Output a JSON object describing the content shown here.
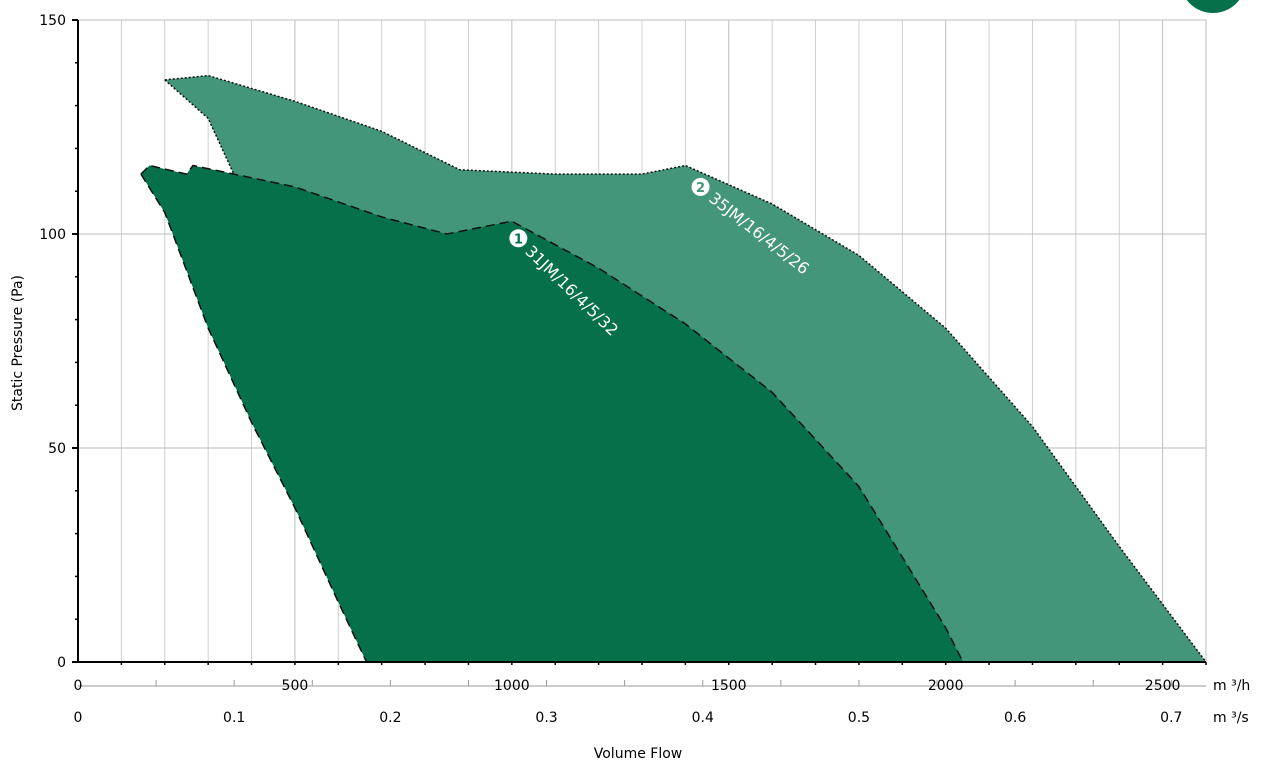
{
  "chart_data": {
    "type": "area",
    "title": "",
    "ylabel": "Static Pressure (Pa)",
    "xlabel": "Volume Flow",
    "x_unit_primary": "m ³/h",
    "x_unit_secondary": "m ³/s",
    "xlim": [
      0,
      2600
    ],
    "ylim": [
      0,
      150
    ],
    "x_ticks_primary": [
      0,
      500,
      1000,
      1500,
      2000,
      2500
    ],
    "x_tick_labels_primary": [
      "0",
      "500",
      "1000",
      "1500",
      "2000",
      "2500"
    ],
    "x_ticks_secondary": [
      0,
      0.1,
      0.2,
      0.3,
      0.4,
      0.5,
      0.6,
      0.7
    ],
    "x_tick_labels_secondary": [
      "0",
      "0.1",
      "0.2",
      "0.3",
      "0.4",
      "0.5",
      "0.6",
      "0.7"
    ],
    "y_ticks": [
      0,
      50,
      100,
      150
    ],
    "y_tick_labels": [
      "0",
      "50",
      "100",
      "150"
    ],
    "grid": true,
    "series": [
      {
        "name": "31JM/16/4/5/32",
        "marker": "1",
        "color": "#05704A",
        "upper": [
          [
            145,
            114
          ],
          [
            165,
            116
          ],
          [
            250,
            114
          ],
          [
            265,
            116
          ],
          [
            500,
            111
          ],
          [
            700,
            104
          ],
          [
            850,
            100
          ],
          [
            1000,
            103
          ],
          [
            1200,
            92
          ],
          [
            1400,
            79
          ],
          [
            1600,
            63
          ],
          [
            1800,
            41
          ],
          [
            2000,
            8
          ],
          [
            2040,
            0
          ]
        ],
        "lower": [
          [
            145,
            114
          ],
          [
            200,
            105
          ],
          [
            300,
            78
          ],
          [
            400,
            56
          ],
          [
            500,
            36
          ],
          [
            600,
            14
          ],
          [
            665,
            0
          ]
        ]
      },
      {
        "name": "35JM/16/4/5/26",
        "marker": "2",
        "color": "#43967A",
        "upper": [
          [
            200,
            136
          ],
          [
            300,
            137
          ],
          [
            500,
            131
          ],
          [
            700,
            124
          ],
          [
            880,
            115
          ],
          [
            1100,
            114
          ],
          [
            1300,
            114
          ],
          [
            1400,
            116
          ],
          [
            1600,
            107
          ],
          [
            1800,
            95
          ],
          [
            2000,
            78
          ],
          [
            2200,
            55
          ],
          [
            2400,
            27
          ],
          [
            2600,
            0
          ]
        ],
        "lower": [
          [
            200,
            136
          ],
          [
            300,
            127
          ],
          [
            400,
            105
          ],
          [
            600,
            77
          ],
          [
            800,
            52
          ],
          [
            1000,
            22
          ],
          [
            1090,
            0
          ]
        ]
      }
    ]
  }
}
